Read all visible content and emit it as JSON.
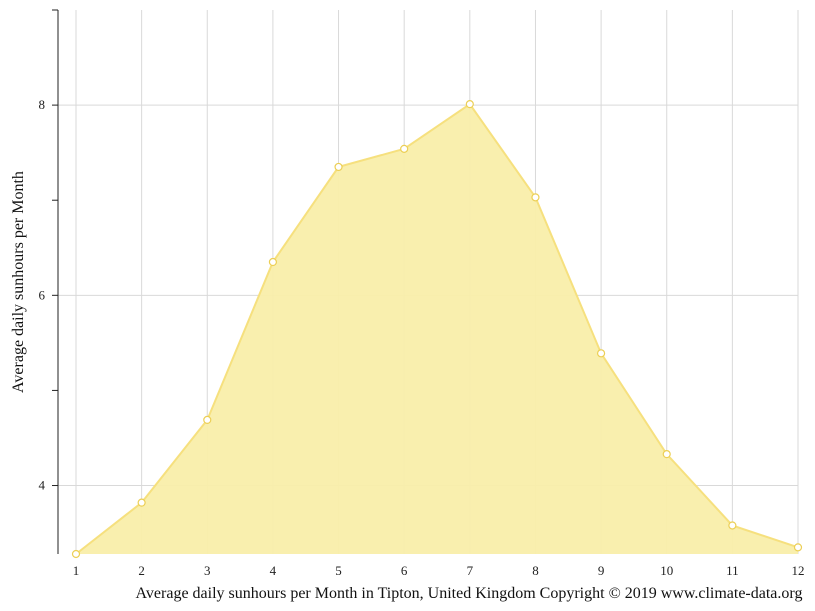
{
  "chart_data": {
    "type": "area",
    "x": [
      1,
      2,
      3,
      4,
      5,
      6,
      7,
      8,
      9,
      10,
      11,
      12
    ],
    "series": [
      {
        "values": [
          3.28,
          3.82,
          4.69,
          6.35,
          7.35,
          7.54,
          8.01,
          7.03,
          5.39,
          4.33,
          3.58,
          3.35
        ]
      }
    ],
    "xlabel": "",
    "ylabel": "Average daily sunhours per Month",
    "caption": "Average daily sunhours per Month in Tipton, United Kingdom Copyright © 2019 www.climate-data.org",
    "xlim": [
      1,
      12
    ],
    "ylim": [
      3.28,
      9
    ],
    "yticks": [
      4,
      6,
      8
    ],
    "grid": true,
    "colors": {
      "fill": "#f9eeaa",
      "stroke": "#f6e07e",
      "grid": "#d9d9d9",
      "marker_fill": "#ffffff"
    }
  }
}
